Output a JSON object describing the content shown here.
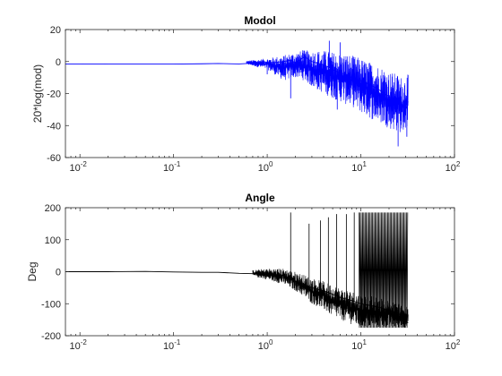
{
  "chart_data": [
    {
      "type": "line",
      "title": "Modol",
      "xlabel": "",
      "ylabel": "20*log(mod)",
      "x_scale": "log",
      "xlim": [
        0.007,
        100
      ],
      "ylim": [
        -60,
        20
      ],
      "x_ticks": [
        {
          "base": "10",
          "exp": "-2",
          "value": 0.01
        },
        {
          "base": "10",
          "exp": "-1",
          "value": 0.1
        },
        {
          "base": "10",
          "exp": "0",
          "value": 1
        },
        {
          "base": "10",
          "exp": "1",
          "value": 10
        },
        {
          "base": "10",
          "exp": "2",
          "value": 100
        }
      ],
      "y_ticks": [
        {
          "label": "20",
          "value": 20
        },
        {
          "label": "0",
          "value": 0
        },
        {
          "label": "-20",
          "value": -20
        },
        {
          "label": "-40",
          "value": -40
        },
        {
          "label": "-60",
          "value": -60
        }
      ],
      "grid": false,
      "legend": "none",
      "line_color": "#0000ff",
      "series": [
        {
          "x": [
            0.007,
            0.01,
            0.02,
            0.05,
            0.1,
            0.2,
            0.3,
            0.5,
            0.7,
            0.9,
            1.0,
            1.2,
            1.5,
            1.8,
            2.0,
            2.5,
            3.0,
            4.0,
            5.0,
            6.0,
            7.0,
            8.0,
            10,
            12,
            15,
            18,
            20,
            25,
            28,
            30,
            32
          ],
          "y": [
            -1.5,
            -1.5,
            -1.6,
            -1.6,
            -1.6,
            -1.4,
            -1.2,
            -1.5,
            -1.0,
            -0.5,
            -0.5,
            -0.6,
            0,
            1,
            -1,
            3,
            0,
            -2,
            -5,
            -7,
            -8,
            -10,
            -12,
            -14,
            -17,
            -20,
            -22,
            -25,
            -27,
            -30,
            -25
          ]
        }
      ],
      "band": {
        "x": [
          0.6,
          1.0,
          1.5,
          2.0,
          2.5,
          3.0,
          4.0,
          5.0,
          6.0,
          7.0,
          8.0,
          10,
          12,
          15,
          18,
          20,
          25,
          28,
          32
        ],
        "lo": [
          -1.8,
          -5,
          -12,
          -10,
          -12,
          -16,
          -20,
          -23,
          -25,
          -27,
          -28,
          -32,
          -35,
          -38,
          -40,
          -42,
          -44,
          -45,
          -40
        ],
        "hi": [
          0.5,
          2,
          4,
          6,
          7,
          7,
          7,
          6,
          5,
          5,
          4,
          2,
          0,
          -2,
          -4,
          -6,
          -8,
          -10,
          -8
        ]
      },
      "spikes": [
        {
          "x": 1.0,
          "y": -8
        },
        {
          "x": 1.78,
          "y": -23
        },
        {
          "x": 2.4,
          "y": 7
        },
        {
          "x": 4.6,
          "y": 13
        },
        {
          "x": 6.0,
          "y": 12
        },
        {
          "x": 5.6,
          "y": -30
        },
        {
          "x": 25,
          "y": -53
        },
        {
          "x": 31,
          "y": -47
        }
      ]
    },
    {
      "type": "line",
      "title": "Angle",
      "xlabel": "",
      "ylabel": "Deg",
      "x_scale": "log",
      "xlim": [
        0.007,
        100
      ],
      "ylim": [
        -200,
        200
      ],
      "x_ticks": [
        {
          "base": "10",
          "exp": "-2",
          "value": 0.01
        },
        {
          "base": "10",
          "exp": "-1",
          "value": 0.1
        },
        {
          "base": "10",
          "exp": "0",
          "value": 1
        },
        {
          "base": "10",
          "exp": "1",
          "value": 10
        },
        {
          "base": "10",
          "exp": "2",
          "value": 100
        }
      ],
      "y_ticks": [
        {
          "label": "200",
          "value": 200
        },
        {
          "label": "100",
          "value": 100
        },
        {
          "label": "0",
          "value": 0
        },
        {
          "label": "-100",
          "value": -100
        },
        {
          "label": "-200",
          "value": -200
        }
      ],
      "grid": false,
      "legend": "none",
      "line_color": "#000000",
      "series": [
        {
          "x": [
            0.007,
            0.01,
            0.02,
            0.05,
            0.1,
            0.2,
            0.3,
            0.5,
            0.7,
            1.0,
            1.3,
            1.5,
            1.8,
            2.0,
            2.5,
            3.0,
            4.0,
            5.0,
            6.0,
            8.0,
            10,
            15,
            20,
            25,
            32
          ],
          "y": [
            0,
            0,
            0,
            1,
            -1,
            -2,
            -2,
            -5,
            -6,
            -8,
            -15,
            -20,
            -25,
            -30,
            -40,
            -50,
            -60,
            -70,
            -80,
            -90,
            -100,
            -110,
            -120,
            -130,
            -160
          ]
        }
      ],
      "band": {
        "x": [
          0.7,
          1.0,
          1.5,
          2.0,
          2.5,
          3.0,
          4.0,
          5.0,
          6.0,
          8.0,
          10,
          15,
          20,
          25,
          32
        ],
        "lo": [
          -15,
          -25,
          -40,
          -60,
          -80,
          -100,
          -120,
          -140,
          -150,
          -165,
          -175,
          -175,
          -175,
          -175,
          -175
        ],
        "hi": [
          5,
          10,
          10,
          0,
          -10,
          -20,
          -30,
          -40,
          -50,
          -60,
          -70,
          -80,
          -90,
          -100,
          -110
        ]
      },
      "spikes": [
        {
          "x": 1.78,
          "y": 185
        },
        {
          "x": 2.8,
          "y": 150
        },
        {
          "x": 3.7,
          "y": 160
        },
        {
          "x": 4.5,
          "y": 170
        },
        {
          "x": 5.5,
          "y": 180
        },
        {
          "x": 7.0,
          "y": 180
        },
        {
          "x": 8.5,
          "y": 185
        }
      ],
      "dense_fill": {
        "x_from": 9.5,
        "x_to": 32,
        "y_lo": -175,
        "y_hi": 185
      }
    }
  ]
}
